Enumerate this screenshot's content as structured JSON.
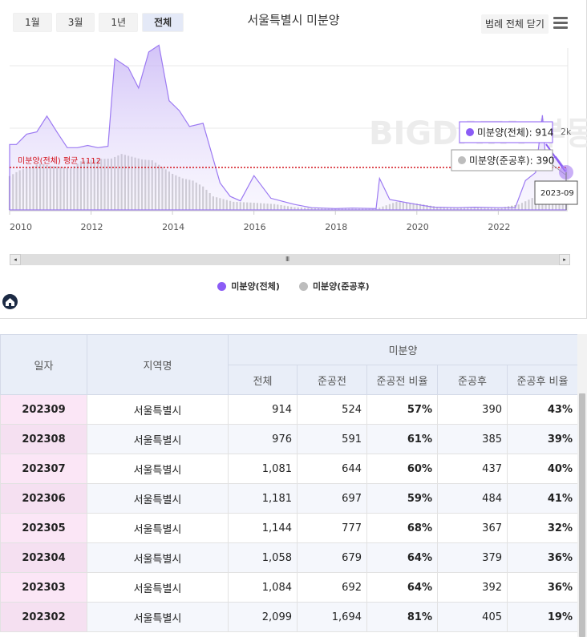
{
  "chart": {
    "title": "서울특별시 미분양",
    "range_buttons": [
      "1월",
      "3월",
      "1년",
      "전체"
    ],
    "active_range": "전체",
    "legend_toggle_label": "범례 전체 닫기",
    "avg_label": "미분양(전체) 평균 1112",
    "y_tick_label": "2k",
    "x_ticks": [
      "2010",
      "2012",
      "2014",
      "2016",
      "2018",
      "2020",
      "2022"
    ],
    "tooltip_total": "미분양(전체): 914",
    "tooltip_after": "미분양(준공후): 390",
    "tooltip_date": "2023-09",
    "watermark": "BIGDATA 부동산지인",
    "scroll_grip": "III",
    "scroll_left": "◂",
    "scroll_right": "▸",
    "legend": [
      {
        "name": "미분양(전체)",
        "color": "#8b5cf6"
      },
      {
        "name": "미분양(준공후)",
        "color": "#bdbdbd"
      }
    ]
  },
  "chart_data": {
    "type": "area",
    "title": "서울특별시 미분양",
    "x_range": [
      "2010-01",
      "2023-09"
    ],
    "ylim": [
      0,
      3800
    ],
    "y_ticks": [
      {
        "value": 2000,
        "label": "2k"
      }
    ],
    "average": {
      "label": "미분양(전체) 평균 1112",
      "value": 1112
    },
    "series": [
      {
        "name": "미분양(전체)",
        "type": "area",
        "color": "#8b5cf6",
        "points": [
          [
            "2010-01",
            1450
          ],
          [
            "2010-03",
            1450
          ],
          [
            "2010-06",
            1680
          ],
          [
            "2010-09",
            1730
          ],
          [
            "2010-12",
            2080
          ],
          [
            "2011-03",
            1720
          ],
          [
            "2011-06",
            1380
          ],
          [
            "2011-09",
            1380
          ],
          [
            "2011-12",
            1430
          ],
          [
            "2012-03",
            1380
          ],
          [
            "2012-06",
            1410
          ],
          [
            "2012-08",
            3350
          ],
          [
            "2012-12",
            3150
          ],
          [
            "2013-03",
            2700
          ],
          [
            "2013-06",
            3500
          ],
          [
            "2013-09",
            3650
          ],
          [
            "2013-12",
            2420
          ],
          [
            "2014-03",
            2200
          ],
          [
            "2014-06",
            1850
          ],
          [
            "2014-10",
            1920
          ],
          [
            "2015-03",
            600
          ],
          [
            "2015-06",
            300
          ],
          [
            "2015-09",
            200
          ],
          [
            "2016-01",
            760
          ],
          [
            "2016-06",
            260
          ],
          [
            "2017-01",
            120
          ],
          [
            "2017-06",
            50
          ],
          [
            "2018-01",
            30
          ],
          [
            "2018-06",
            40
          ],
          [
            "2019-01",
            30
          ],
          [
            "2019-02",
            700
          ],
          [
            "2019-05",
            230
          ],
          [
            "2020-01",
            120
          ],
          [
            "2020-06",
            60
          ],
          [
            "2021-01",
            50
          ],
          [
            "2021-06",
            60
          ],
          [
            "2022-01",
            50
          ],
          [
            "2022-06",
            50
          ],
          [
            "2022-09",
            650
          ],
          [
            "2022-12",
            830
          ],
          [
            "2023-02",
            2099
          ],
          [
            "2023-03",
            1084
          ],
          [
            "2023-04",
            1058
          ],
          [
            "2023-05",
            1144
          ],
          [
            "2023-06",
            1181
          ],
          [
            "2023-07",
            1081
          ],
          [
            "2023-08",
            976
          ],
          [
            "2023-09",
            914
          ]
        ]
      },
      {
        "name": "미분양(준공후)",
        "type": "bar",
        "color": "#bdbdbd",
        "points": [
          [
            "2010-01",
            750
          ],
          [
            "2010-04",
            880
          ],
          [
            "2010-07",
            950
          ],
          [
            "2010-10",
            1030
          ],
          [
            "2011-01",
            980
          ],
          [
            "2011-04",
            960
          ],
          [
            "2011-07",
            920
          ],
          [
            "2011-10",
            1080
          ],
          [
            "2012-01",
            1110
          ],
          [
            "2012-04",
            1130
          ],
          [
            "2012-07",
            1140
          ],
          [
            "2012-10",
            1240
          ],
          [
            "2013-01",
            1180
          ],
          [
            "2013-04",
            1120
          ],
          [
            "2013-07",
            1100
          ],
          [
            "2013-10",
            950
          ],
          [
            "2014-01",
            800
          ],
          [
            "2014-04",
            700
          ],
          [
            "2014-07",
            650
          ],
          [
            "2014-10",
            520
          ],
          [
            "2015-01",
            300
          ],
          [
            "2015-07",
            180
          ],
          [
            "2016-01",
            160
          ],
          [
            "2016-07",
            130
          ],
          [
            "2017-01",
            60
          ],
          [
            "2017-07",
            40
          ],
          [
            "2018-01",
            30
          ],
          [
            "2018-07",
            25
          ],
          [
            "2019-01",
            25
          ],
          [
            "2019-07",
            180
          ],
          [
            "2020-01",
            140
          ],
          [
            "2020-07",
            70
          ],
          [
            "2021-01",
            55
          ],
          [
            "2021-07",
            50
          ],
          [
            "2022-01",
            40
          ],
          [
            "2022-07",
            120
          ],
          [
            "2022-12",
            300
          ],
          [
            "2023-02",
            405
          ],
          [
            "2023-03",
            392
          ],
          [
            "2023-04",
            379
          ],
          [
            "2023-05",
            367
          ],
          [
            "2023-06",
            484
          ],
          [
            "2023-07",
            437
          ],
          [
            "2023-08",
            385
          ],
          [
            "2023-09",
            390
          ]
        ]
      }
    ]
  },
  "table": {
    "headers": {
      "date": "일자",
      "region": "지역명",
      "group": "미분양",
      "total": "전체",
      "before": "준공전",
      "before_ratio": "준공전 비율",
      "after": "준공후",
      "after_ratio": "준공후 비율"
    },
    "rows": [
      {
        "date": "202309",
        "region": "서울특별시",
        "total": "914",
        "before": "524",
        "before_ratio": "57%",
        "after": "390",
        "after_ratio": "43%"
      },
      {
        "date": "202308",
        "region": "서울특별시",
        "total": "976",
        "before": "591",
        "before_ratio": "61%",
        "after": "385",
        "after_ratio": "39%"
      },
      {
        "date": "202307",
        "region": "서울특별시",
        "total": "1,081",
        "before": "644",
        "before_ratio": "60%",
        "after": "437",
        "after_ratio": "40%"
      },
      {
        "date": "202306",
        "region": "서울특별시",
        "total": "1,181",
        "before": "697",
        "before_ratio": "59%",
        "after": "484",
        "after_ratio": "41%"
      },
      {
        "date": "202305",
        "region": "서울특별시",
        "total": "1,144",
        "before": "777",
        "before_ratio": "68%",
        "after": "367",
        "after_ratio": "32%"
      },
      {
        "date": "202304",
        "region": "서울특별시",
        "total": "1,058",
        "before": "679",
        "before_ratio": "64%",
        "after": "379",
        "after_ratio": "36%"
      },
      {
        "date": "202303",
        "region": "서울특별시",
        "total": "1,084",
        "before": "692",
        "before_ratio": "64%",
        "after": "392",
        "after_ratio": "36%"
      },
      {
        "date": "202302",
        "region": "서울특별시",
        "total": "2,099",
        "before": "1,694",
        "before_ratio": "81%",
        "after": "405",
        "after_ratio": "19%"
      }
    ]
  }
}
